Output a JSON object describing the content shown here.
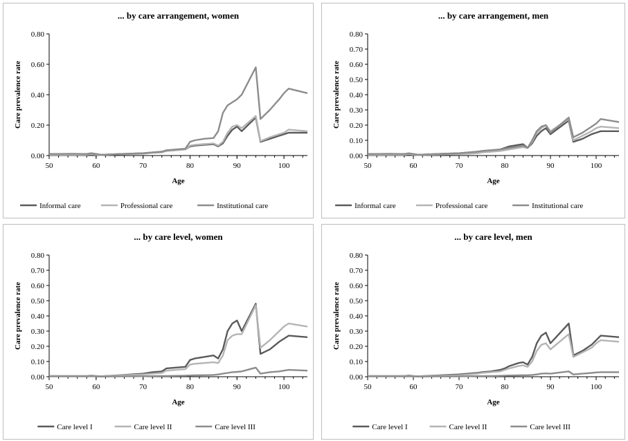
{
  "colors": {
    "series1": "#5a5a5a",
    "series2": "#b4b4b4",
    "series3": "#8c8c8c",
    "axis": "#000000",
    "border": "#bdbdbd"
  },
  "chart_data": [
    {
      "type": "line",
      "title": "... by care arrangement, women",
      "xlabel": "Age",
      "ylabel": "Care prevalence rate",
      "xlim": [
        50,
        105
      ],
      "ylim": [
        0,
        0.8
      ],
      "xticks": [
        "50",
        "60",
        "70",
        "80",
        "90",
        "100"
      ],
      "yticks": [
        "0.00",
        "0.20",
        "0.40",
        "0.60",
        "0.80"
      ],
      "grid": false,
      "legend": "bottom",
      "series": [
        {
          "name": "Informal care",
          "x": [
            50,
            55,
            58,
            59,
            60,
            61,
            65,
            70,
            72,
            74,
            75,
            77,
            79,
            80,
            81,
            83,
            85,
            86,
            87,
            88,
            89,
            90,
            91,
            94,
            95,
            97,
            99,
            100,
            101,
            105
          ],
          "y": [
            0.01,
            0.01,
            0.01,
            0.015,
            0.01,
            0.005,
            0.01,
            0.015,
            0.02,
            0.025,
            0.03,
            0.035,
            0.04,
            0.06,
            0.065,
            0.07,
            0.075,
            0.06,
            0.08,
            0.13,
            0.17,
            0.19,
            0.16,
            0.25,
            0.09,
            0.11,
            0.13,
            0.14,
            0.15,
            0.15
          ]
        },
        {
          "name": "Professional care",
          "x": [
            50,
            55,
            58,
            59,
            60,
            61,
            65,
            70,
            72,
            74,
            75,
            77,
            79,
            80,
            81,
            83,
            85,
            86,
            87,
            88,
            89,
            90,
            91,
            94,
            95,
            97,
            99,
            100,
            101,
            105
          ],
          "y": [
            0.005,
            0.005,
            0.005,
            0.01,
            0.005,
            0.003,
            0.008,
            0.012,
            0.018,
            0.02,
            0.03,
            0.035,
            0.04,
            0.065,
            0.07,
            0.075,
            0.08,
            0.065,
            0.09,
            0.15,
            0.19,
            0.2,
            0.18,
            0.26,
            0.095,
            0.12,
            0.14,
            0.15,
            0.17,
            0.16
          ]
        },
        {
          "name": "Institutional care",
          "x": [
            50,
            55,
            58,
            59,
            60,
            61,
            65,
            70,
            72,
            74,
            75,
            77,
            79,
            80,
            81,
            83,
            85,
            86,
            87,
            88,
            89,
            90,
            91,
            94,
            95,
            97,
            99,
            100,
            101,
            105
          ],
          "y": [
            0.01,
            0.012,
            0.01,
            0.015,
            0.01,
            0.005,
            0.01,
            0.015,
            0.02,
            0.025,
            0.035,
            0.04,
            0.045,
            0.09,
            0.1,
            0.11,
            0.115,
            0.16,
            0.28,
            0.33,
            0.35,
            0.37,
            0.4,
            0.58,
            0.24,
            0.3,
            0.37,
            0.41,
            0.44,
            0.41
          ]
        }
      ]
    },
    {
      "type": "line",
      "title": "... by care arrangement, men",
      "xlabel": "Age",
      "ylabel": "Care prevalence rate",
      "xlim": [
        50,
        105
      ],
      "ylim": [
        0,
        0.8
      ],
      "xticks": [
        "50",
        "60",
        "70",
        "80",
        "90",
        "100"
      ],
      "yticks": [
        "0.00",
        "0.10",
        "0.20",
        "0.30",
        "0.40",
        "0.50",
        "0.60",
        "0.70",
        "0.80"
      ],
      "grid": false,
      "legend": "bottom",
      "series": [
        {
          "name": "Informal care",
          "x": [
            50,
            55,
            58,
            59,
            60,
            61,
            65,
            70,
            72,
            74,
            75,
            77,
            79,
            80,
            81,
            83,
            84,
            85,
            86,
            87,
            88,
            89,
            90,
            94,
            95,
            97,
            99,
            100,
            101,
            105
          ],
          "y": [
            0.01,
            0.01,
            0.01,
            0.012,
            0.01,
            0.005,
            0.01,
            0.015,
            0.02,
            0.025,
            0.03,
            0.035,
            0.04,
            0.05,
            0.06,
            0.07,
            0.075,
            0.05,
            0.08,
            0.13,
            0.16,
            0.18,
            0.14,
            0.23,
            0.09,
            0.11,
            0.14,
            0.15,
            0.16,
            0.16
          ]
        },
        {
          "name": "Professional care",
          "x": [
            50,
            55,
            58,
            59,
            60,
            61,
            65,
            70,
            72,
            74,
            75,
            77,
            79,
            80,
            81,
            83,
            84,
            85,
            86,
            87,
            88,
            89,
            90,
            94,
            95,
            97,
            99,
            100,
            101,
            105
          ],
          "y": [
            0.005,
            0.005,
            0.005,
            0.008,
            0.005,
            0.003,
            0.006,
            0.01,
            0.012,
            0.015,
            0.02,
            0.025,
            0.03,
            0.035,
            0.04,
            0.05,
            0.055,
            0.05,
            0.09,
            0.15,
            0.18,
            0.2,
            0.16,
            0.24,
            0.1,
            0.13,
            0.16,
            0.18,
            0.19,
            0.18
          ]
        },
        {
          "name": "Institutional care",
          "x": [
            50,
            55,
            58,
            59,
            60,
            61,
            65,
            70,
            72,
            74,
            75,
            77,
            79,
            80,
            81,
            83,
            84,
            85,
            86,
            87,
            88,
            89,
            90,
            94,
            95,
            97,
            99,
            100,
            101,
            105
          ],
          "y": [
            0.01,
            0.012,
            0.01,
            0.015,
            0.01,
            0.005,
            0.01,
            0.015,
            0.02,
            0.025,
            0.03,
            0.035,
            0.04,
            0.045,
            0.05,
            0.06,
            0.065,
            0.05,
            0.1,
            0.16,
            0.19,
            0.2,
            0.15,
            0.25,
            0.12,
            0.15,
            0.19,
            0.21,
            0.24,
            0.22
          ]
        }
      ]
    },
    {
      "type": "line",
      "title": "... by care level, women",
      "xlabel": "Age",
      "ylabel": "Care prevalence rate",
      "xlim": [
        50,
        105
      ],
      "ylim": [
        0,
        0.8
      ],
      "xticks": [
        "50",
        "60",
        "70",
        "80",
        "90",
        "100"
      ],
      "yticks": [
        "0.00",
        "0.10",
        "0.20",
        "0.30",
        "0.40",
        "0.50",
        "0.60",
        "0.70",
        "0.80"
      ],
      "grid": false,
      "legend": "bottom",
      "series": [
        {
          "name": "Care level I",
          "x": [
            50,
            55,
            58,
            59,
            60,
            61,
            65,
            70,
            72,
            74,
            75,
            77,
            79,
            80,
            81,
            83,
            85,
            86,
            87,
            88,
            89,
            90,
            91,
            94,
            95,
            97,
            99,
            100,
            101,
            105
          ],
          "y": [
            0.005,
            0.005,
            0.005,
            0.008,
            0.005,
            0.003,
            0.01,
            0.02,
            0.03,
            0.035,
            0.055,
            0.06,
            0.065,
            0.11,
            0.12,
            0.13,
            0.14,
            0.12,
            0.18,
            0.3,
            0.35,
            0.37,
            0.3,
            0.48,
            0.15,
            0.18,
            0.23,
            0.25,
            0.27,
            0.26
          ]
        },
        {
          "name": "Care level II",
          "x": [
            50,
            55,
            58,
            59,
            60,
            61,
            65,
            70,
            72,
            74,
            75,
            77,
            79,
            80,
            81,
            83,
            85,
            86,
            87,
            88,
            89,
            90,
            91,
            94,
            95,
            97,
            99,
            100,
            101,
            105
          ],
          "y": [
            0.005,
            0.005,
            0.005,
            0.008,
            0.005,
            0.003,
            0.008,
            0.015,
            0.02,
            0.025,
            0.04,
            0.045,
            0.05,
            0.08,
            0.085,
            0.09,
            0.095,
            0.09,
            0.14,
            0.24,
            0.27,
            0.28,
            0.28,
            0.47,
            0.19,
            0.24,
            0.3,
            0.33,
            0.35,
            0.33
          ]
        },
        {
          "name": "Care level III",
          "x": [
            50,
            55,
            58,
            59,
            60,
            61,
            65,
            70,
            72,
            74,
            75,
            77,
            79,
            80,
            81,
            83,
            85,
            86,
            87,
            88,
            89,
            90,
            91,
            94,
            95,
            97,
            99,
            100,
            101,
            105
          ],
          "y": [
            0.002,
            0.002,
            0.002,
            0.003,
            0.002,
            0.001,
            0.002,
            0.003,
            0.004,
            0.005,
            0.005,
            0.006,
            0.007,
            0.008,
            0.009,
            0.01,
            0.012,
            0.015,
            0.02,
            0.025,
            0.03,
            0.032,
            0.035,
            0.06,
            0.02,
            0.03,
            0.035,
            0.04,
            0.045,
            0.04
          ]
        }
      ]
    },
    {
      "type": "line",
      "title": "... by care level, men",
      "xlabel": "Age",
      "ylabel": "Care prevalence rate",
      "xlim": [
        50,
        105
      ],
      "ylim": [
        0,
        0.8
      ],
      "xticks": [
        "50",
        "60",
        "70",
        "80",
        "90",
        "100"
      ],
      "yticks": [
        "0.00",
        "0.10",
        "0.20",
        "0.30",
        "0.40",
        "0.50",
        "0.60",
        "0.70",
        "0.80"
      ],
      "grid": false,
      "legend": "bottom",
      "series": [
        {
          "name": "Care level I",
          "x": [
            50,
            55,
            58,
            59,
            60,
            61,
            65,
            70,
            72,
            74,
            75,
            77,
            79,
            80,
            81,
            83,
            84,
            85,
            86,
            87,
            88,
            89,
            90,
            94,
            95,
            97,
            99,
            100,
            101,
            105
          ],
          "y": [
            0.005,
            0.005,
            0.005,
            0.008,
            0.005,
            0.003,
            0.008,
            0.015,
            0.02,
            0.025,
            0.03,
            0.035,
            0.045,
            0.055,
            0.07,
            0.09,
            0.095,
            0.08,
            0.13,
            0.22,
            0.27,
            0.29,
            0.22,
            0.35,
            0.14,
            0.17,
            0.21,
            0.24,
            0.27,
            0.26
          ]
        },
        {
          "name": "Care level II",
          "x": [
            50,
            55,
            58,
            59,
            60,
            61,
            65,
            70,
            72,
            74,
            75,
            77,
            79,
            80,
            81,
            83,
            84,
            85,
            86,
            87,
            88,
            89,
            90,
            94,
            95,
            97,
            99,
            100,
            101,
            105
          ],
          "y": [
            0.005,
            0.005,
            0.005,
            0.006,
            0.004,
            0.003,
            0.006,
            0.01,
            0.015,
            0.02,
            0.025,
            0.03,
            0.035,
            0.045,
            0.055,
            0.07,
            0.075,
            0.065,
            0.1,
            0.17,
            0.21,
            0.22,
            0.18,
            0.28,
            0.13,
            0.16,
            0.19,
            0.22,
            0.24,
            0.23
          ]
        },
        {
          "name": "Care level III",
          "x": [
            50,
            55,
            58,
            59,
            60,
            61,
            65,
            70,
            72,
            74,
            75,
            77,
            79,
            80,
            81,
            83,
            84,
            85,
            86,
            87,
            88,
            89,
            90,
            94,
            95,
            97,
            99,
            100,
            101,
            105
          ],
          "y": [
            0.002,
            0.002,
            0.002,
            0.002,
            0.002,
            0.001,
            0.002,
            0.002,
            0.003,
            0.004,
            0.004,
            0.005,
            0.006,
            0.007,
            0.008,
            0.009,
            0.01,
            0.01,
            0.012,
            0.015,
            0.02,
            0.022,
            0.02,
            0.035,
            0.015,
            0.02,
            0.025,
            0.028,
            0.03,
            0.03
          ]
        }
      ]
    }
  ]
}
